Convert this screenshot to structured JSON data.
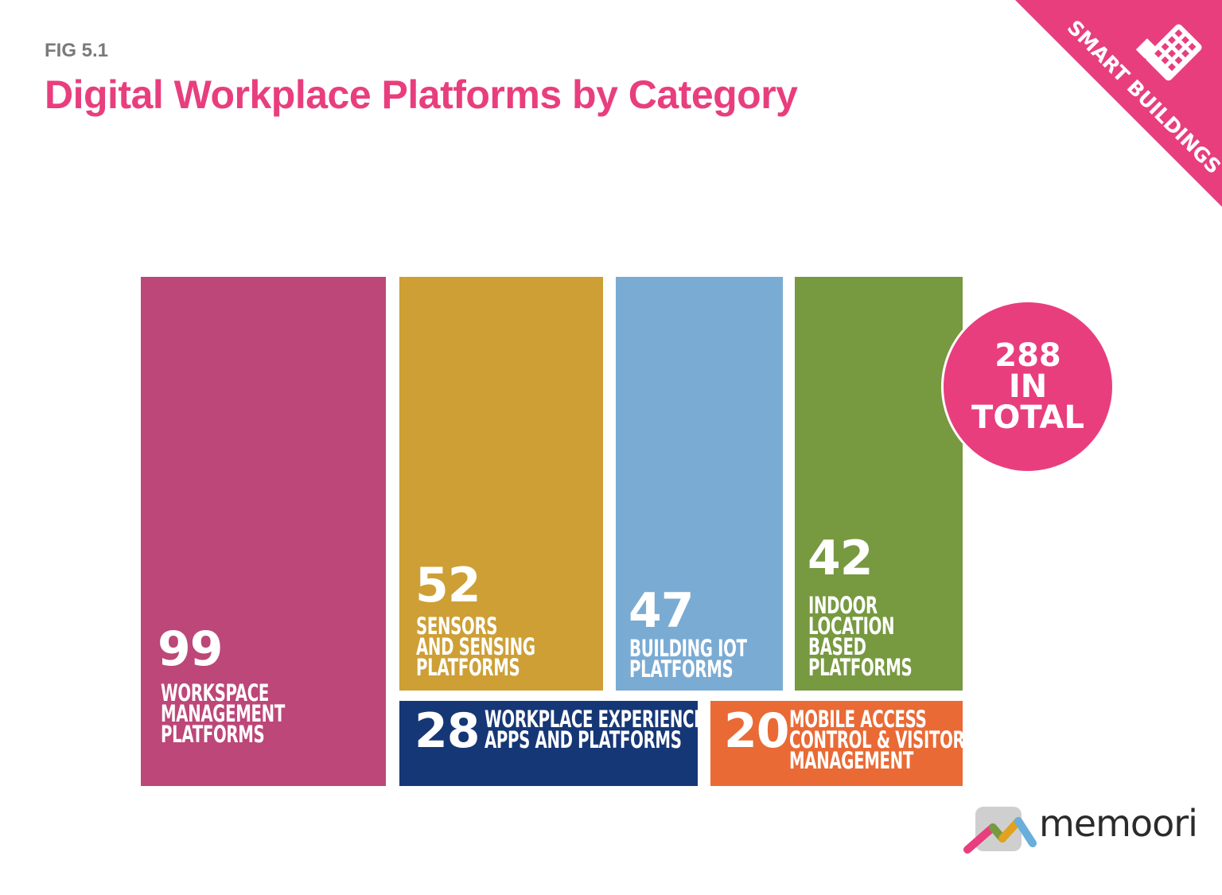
{
  "header": {
    "fig_label": "FIG 5.1",
    "title": "Digital Workplace Platforms by Category"
  },
  "badge": {
    "text": "SMART BUILDINGS",
    "icon": "building-icon",
    "color": "#e83e7e"
  },
  "chart_data": {
    "type": "treemap",
    "title": "Digital Workplace Platforms by Category",
    "items": [
      {
        "value": "99",
        "label": "WORKSPACE\nMANAGEMENT\nPLATFORMS",
        "color": "#bc4778"
      },
      {
        "value": "52",
        "label": "SENSORS\nAND SENSING\nPLATFORMS",
        "color": "#cd9f35"
      },
      {
        "value": "47",
        "label": "BUILDING IOT\nPLATFORMS",
        "color": "#7aabd3"
      },
      {
        "value": "42",
        "label": "INDOOR\nLOCATION\nBASED\nPLATFORMS",
        "color": "#779940"
      },
      {
        "value": "28",
        "label": "WORKPLACE EXPERIENCE\nAPPS AND PLATFORMS",
        "color": "#163776"
      },
      {
        "value": "20",
        "label": "MOBILE ACCESS\nCONTROL & VISITOR\nMANAGEMENT",
        "color": "#e96a35"
      }
    ],
    "total": {
      "text": "288\nIN\nTOTAL",
      "value": 288,
      "color": "#e83e7e"
    }
  },
  "logo": {
    "text": "memoori"
  }
}
